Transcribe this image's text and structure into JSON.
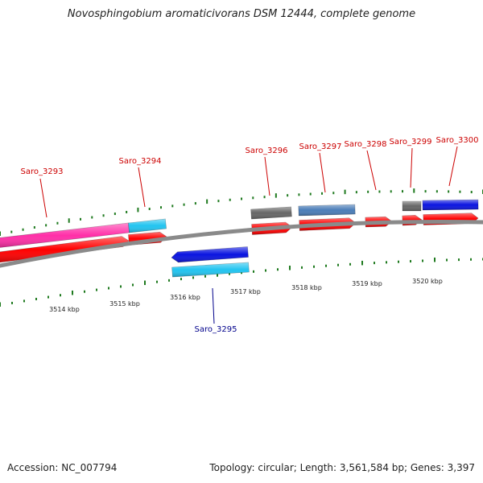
{
  "title": "Novosphingobium aromaticivorans DSM 12444, complete genome",
  "footer": {
    "accession_label": "Accession:",
    "accession": "NC_007794",
    "topology": "Topology: circular; Length: 3,561,584 bp; Genes: 3,397"
  },
  "colors": {
    "backbone": "#8a8a8a",
    "tick": "#1f7a1f",
    "forward_label": "#cc0000",
    "reverse_label": "#00008b",
    "cds": "#ff0000",
    "magenta": "#ff2fa8",
    "cyan": "#22c4f0",
    "blue": "#0a14e0",
    "gray": "#666666",
    "steelblue": "#4a7db8"
  },
  "kbp_labels": [
    "3514 kbp",
    "3515 kbp",
    "3516 kbp",
    "3517 kbp",
    "3518 kbp",
    "3519 kbp",
    "3520 kbp"
  ],
  "gene_labels": [
    {
      "id": "Saro_3293",
      "strand": "forward"
    },
    {
      "id": "Saro_3294",
      "strand": "forward"
    },
    {
      "id": "Saro_3295",
      "strand": "reverse"
    },
    {
      "id": "Saro_3296",
      "strand": "forward"
    },
    {
      "id": "Saro_3297",
      "strand": "forward"
    },
    {
      "id": "Saro_3298",
      "strand": "forward"
    },
    {
      "id": "Saro_3299",
      "strand": "forward"
    },
    {
      "id": "Saro_3300",
      "strand": "forward"
    }
  ]
}
